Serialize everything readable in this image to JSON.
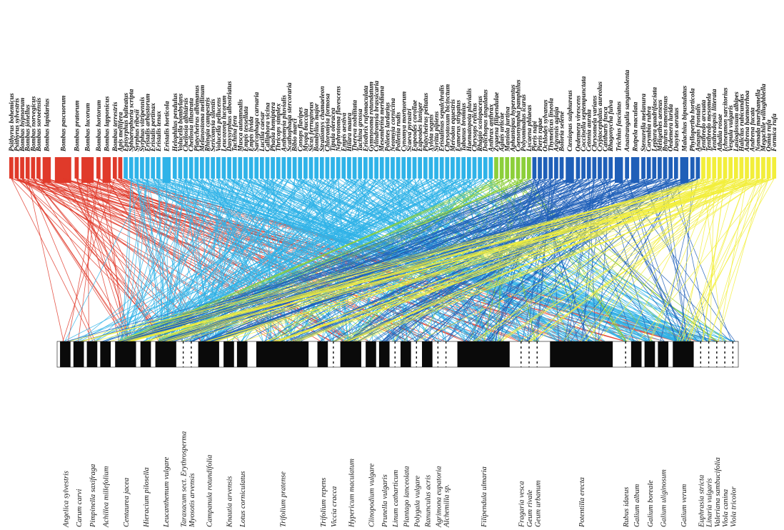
{
  "colors": {
    "red": "#e03a2a",
    "lightblue": "#2fb3e8",
    "green": "#8ccf3a",
    "darkblue": "#1f5fb8",
    "yellow": "#f2ee3a",
    "bar": "#0a0a0a"
  },
  "insects": [
    {
      "name": "Psithyrus bohemicus",
      "group": "red",
      "w": 1
    },
    {
      "name": "Psithyrus sylvestris",
      "group": "red",
      "w": 1
    },
    {
      "name": "Bombus hypnorum",
      "group": "red",
      "w": 1
    },
    {
      "name": "Bombus jonellus",
      "group": "red",
      "w": 1
    },
    {
      "name": "Bombus norvegicus",
      "group": "red",
      "w": 1
    },
    {
      "name": "Bombus soroeensis",
      "group": "red",
      "w": 1
    },
    {
      "name": "Bombus lapidarius",
      "group": "red",
      "w": 2
    },
    {
      "name": "Bombus pascuorum",
      "group": "red",
      "w": 4
    },
    {
      "name": "Bombus pratorum",
      "group": "red",
      "w": 1
    },
    {
      "name": "Bombus lucorum",
      "group": "red",
      "w": 3
    },
    {
      "name": "Bombus hortorum",
      "group": "red",
      "w": 1
    },
    {
      "name": "Bombus lapponicus",
      "group": "red",
      "w": 2
    },
    {
      "name": "Bombus terrestris",
      "group": "red",
      "w": 1
    },
    {
      "name": "Apis mellifera",
      "group": "red",
      "w": 1
    },
    {
      "name": "Episyrphus balteatus",
      "group": "lightblue",
      "w": 1
    },
    {
      "name": "Sphaerophoria scripta",
      "group": "lightblue",
      "w": 1
    },
    {
      "name": "Syrphus ribesii",
      "group": "lightblue",
      "w": 1
    },
    {
      "name": "Syrphus vitripennis",
      "group": "lightblue",
      "w": 1
    },
    {
      "name": "Eristalis arbustorum",
      "group": "lightblue",
      "w": 1
    },
    {
      "name": "Eristalis pertinax",
      "group": "lightblue",
      "w": 1
    },
    {
      "name": "Eristalis tenax",
      "group": "lightblue",
      "w": 1
    },
    {
      "name": "Eristalis horticola",
      "group": "lightblue",
      "w": 2
    },
    {
      "name": "Helophilus pendulus",
      "group": "lightblue",
      "w": 1
    },
    {
      "name": "Volucella bombylans",
      "group": "lightblue",
      "w": 1
    },
    {
      "name": "Cheilosia albitarsis",
      "group": "lightblue",
      "w": 1
    },
    {
      "name": "Cheilosia illustrata",
      "group": "lightblue",
      "w": 1
    },
    {
      "name": "Platycheirus albimanus",
      "group": "lightblue",
      "w": 1
    },
    {
      "name": "Melanostoma mellinum",
      "group": "lightblue",
      "w": 1
    },
    {
      "name": "Rhingia campestris",
      "group": "lightblue",
      "w": 1
    },
    {
      "name": "Sericomyia silentis",
      "group": "lightblue",
      "w": 1
    },
    {
      "name": "Volucella pellucens",
      "group": "lightblue",
      "w": 1
    },
    {
      "name": "Leucozona lucorum",
      "group": "lightblue",
      "w": 1
    },
    {
      "name": "Dasysyrphus albostriatus",
      "group": "lightblue",
      "w": 1
    },
    {
      "name": "Tachina fera",
      "group": "lightblue",
      "w": 1
    },
    {
      "name": "Musca autumnalis",
      "group": "lightblue",
      "w": 1
    },
    {
      "name": "Empis tessellata",
      "group": "lightblue",
      "w": 1
    },
    {
      "name": "Empis livida",
      "group": "lightblue",
      "w": 1
    },
    {
      "name": "Sarcophaga carnaria",
      "group": "lightblue",
      "w": 1
    },
    {
      "name": "Lucilia caesar",
      "group": "lightblue",
      "w": 1
    },
    {
      "name": "Calliphora vicina",
      "group": "lightblue",
      "w": 1
    },
    {
      "name": "Phasia hemiptera",
      "group": "lightblue",
      "w": 1
    },
    {
      "name": "Thricops simplex",
      "group": "lightblue",
      "w": 1
    },
    {
      "name": "Anthomyia pluvialis",
      "group": "lightblue",
      "w": 1
    },
    {
      "name": "Scathophaga stercoraria",
      "group": "lightblue",
      "w": 1
    },
    {
      "name": "Bibio marci",
      "group": "lightblue",
      "w": 1
    },
    {
      "name": "Conops flavipes",
      "group": "lightblue",
      "w": 1
    },
    {
      "name": "Myopa buccata",
      "group": "lightblue",
      "w": 1
    },
    {
      "name": "Sicus ferrugineus",
      "group": "lightblue",
      "w": 1
    },
    {
      "name": "Bombylius major",
      "group": "lightblue",
      "w": 1
    },
    {
      "name": "Stratiomys chamaeleon",
      "group": "lightblue",
      "w": 1
    },
    {
      "name": "Chloromyia formosa",
      "group": "lightblue",
      "w": 1
    },
    {
      "name": "Tipula oleracea",
      "group": "lightblue",
      "w": 1
    },
    {
      "name": "Nephrotoma flavescens",
      "group": "lightblue",
      "w": 1
    },
    {
      "name": "Empis aestiva",
      "group": "lightblue",
      "w": 1
    },
    {
      "name": "Hilara maura",
      "group": "lightblue",
      "w": 1
    },
    {
      "name": "Thereva nobilitata",
      "group": "lightblue",
      "w": 1
    },
    {
      "name": "Tachina grossa",
      "group": "lightblue",
      "w": 1
    },
    {
      "name": "Eriothrix rufomaculata",
      "group": "lightblue",
      "w": 1
    },
    {
      "name": "Gymnosoma rotundatum",
      "group": "lightblue",
      "w": 1
    },
    {
      "name": "Cylindromyia brassicaria",
      "group": "lightblue",
      "w": 1
    },
    {
      "name": "Mesembrina meridiana",
      "group": "lightblue",
      "w": 1
    },
    {
      "name": "Polietes lardarius",
      "group": "lightblue",
      "w": 1
    },
    {
      "name": "Neomyia cornicina",
      "group": "lightblue",
      "w": 1
    },
    {
      "name": "Pollenia rudis",
      "group": "lightblue",
      "w": 1
    },
    {
      "name": "Cynomya mortuorum",
      "group": "lightblue",
      "w": 1
    },
    {
      "name": "Scaeva pyrastri",
      "group": "lightblue",
      "w": 1
    },
    {
      "name": "Eupeodes corollae",
      "group": "lightblue",
      "w": 1
    },
    {
      "name": "Eupeodes luniger",
      "group": "lightblue",
      "w": 1
    },
    {
      "name": "Platycheirus peltatus",
      "group": "lightblue",
      "w": 1
    },
    {
      "name": "Xylota segnis",
      "group": "lightblue",
      "w": 1
    },
    {
      "name": "Syritta pipiens",
      "group": "lightblue",
      "w": 1
    },
    {
      "name": "Eristalinus sepulchralis",
      "group": "lightblue",
      "w": 1
    },
    {
      "name": "Chrysotoxum bicinctum",
      "group": "lightblue",
      "w": 1
    },
    {
      "name": "Merodon equestris",
      "group": "lightblue",
      "w": 1
    },
    {
      "name": "Eumerus strigatus",
      "group": "lightblue",
      "w": 1
    },
    {
      "name": "Tabanus bromius",
      "group": "lightblue",
      "w": 1
    },
    {
      "name": "Haematopota pluvialis",
      "group": "lightblue",
      "w": 1
    },
    {
      "name": "Chrysops relictus",
      "group": "lightblue",
      "w": 1
    },
    {
      "name": "Rhagio scolopaceus",
      "group": "lightblue",
      "w": 1
    },
    {
      "name": "Dolichopus ungulatus",
      "group": "lightblue",
      "w": 1
    },
    {
      "name": "Anthrax anthrax",
      "group": "lightblue",
      "w": 1
    },
    {
      "name": "Zygaena filipendulae",
      "group": "green",
      "w": 1
    },
    {
      "name": "Aglais urticae",
      "group": "green",
      "w": 1
    },
    {
      "name": "Maniola jurtina",
      "group": "green",
      "w": 1
    },
    {
      "name": "Aphantopus hyperantus",
      "group": "green",
      "w": 1
    },
    {
      "name": "Coenonympha pamphilus",
      "group": "green",
      "w": 1
    },
    {
      "name": "Polyommatus icarus",
      "group": "green",
      "w": 1
    },
    {
      "name": "Lycaena phlaeas",
      "group": "green",
      "w": 1
    },
    {
      "name": "Pieris napi",
      "group": "darkblue",
      "w": 1
    },
    {
      "name": "Pieris rapae",
      "group": "darkblue",
      "w": 1
    },
    {
      "name": "Ochlodes sylvanus",
      "group": "darkblue",
      "w": 1
    },
    {
      "name": "Thymelicus lineola",
      "group": "darkblue",
      "w": 1
    },
    {
      "name": "Argynnis aglaja",
      "group": "darkblue",
      "w": 1
    },
    {
      "name": "Boloria selene",
      "group": "darkblue",
      "w": 1
    },
    {
      "name": "Cteniopus sulphureus",
      "group": "darkblue",
      "w": 2
    },
    {
      "name": "Oedemera virescens",
      "group": "darkblue",
      "w": 1
    },
    {
      "name": "Coccinella septempunctata",
      "group": "darkblue",
      "w": 1
    },
    {
      "name": "Cetonia aurata",
      "group": "darkblue",
      "w": 1
    },
    {
      "name": "Chrysomela varians",
      "group": "darkblue",
      "w": 1
    },
    {
      "name": "Cryptocephalus aureolus",
      "group": "darkblue",
      "w": 1
    },
    {
      "name": "Cantharis fusca",
      "group": "darkblue",
      "w": 1
    },
    {
      "name": "Rhagonycha fulva",
      "group": "darkblue",
      "w": 1
    },
    {
      "name": "Trichius fasciatus",
      "group": "darkblue",
      "w": 2
    },
    {
      "name": "Anastrangalia sanguinolenta",
      "group": "darkblue",
      "w": 1
    },
    {
      "name": "Rutpela maculata",
      "group": "darkblue",
      "w": 2
    },
    {
      "name": "Stenurella melanura",
      "group": "darkblue",
      "w": 1
    },
    {
      "name": "Corymbia rubra",
      "group": "darkblue",
      "w": 1
    },
    {
      "name": "Leptura quadrifasciata",
      "group": "darkblue",
      "w": 1
    },
    {
      "name": "Meligethes aeneus",
      "group": "darkblue",
      "w": 1
    },
    {
      "name": "Byturus tomentosus",
      "group": "darkblue",
      "w": 1
    },
    {
      "name": "Oedemera lurida",
      "group": "darkblue",
      "w": 1
    },
    {
      "name": "Dasytes aeratus",
      "group": "darkblue",
      "w": 1
    },
    {
      "name": "Malachius bipustulatus",
      "group": "darkblue",
      "w": 2
    },
    {
      "name": "Phyllopertha horticola",
      "group": "darkblue",
      "w": 1
    },
    {
      "name": "Anaspis frontalis",
      "group": "darkblue",
      "w": 1
    },
    {
      "name": "Tenthredo arcuata",
      "group": "yellow",
      "w": 1
    },
    {
      "name": "Tenthredo mesomela",
      "group": "yellow",
      "w": 1
    },
    {
      "name": "Tenthredopsis litterata",
      "group": "yellow",
      "w": 1
    },
    {
      "name": "Athalia rosae",
      "group": "yellow",
      "w": 1
    },
    {
      "name": "Ichneumon sarcitorius",
      "group": "yellow",
      "w": 1
    },
    {
      "name": "Vespula vulgaris",
      "group": "yellow",
      "w": 1
    },
    {
      "name": "Lasioglossum albipes",
      "group": "yellow",
      "w": 1
    },
    {
      "name": "Halictus rubicundus",
      "group": "yellow",
      "w": 1
    },
    {
      "name": "Andrena haemorrhoa",
      "group": "yellow",
      "w": 1
    },
    {
      "name": "Andrena fucata",
      "group": "yellow",
      "w": 1
    },
    {
      "name": "Nomada marshamella",
      "group": "yellow",
      "w": 1
    },
    {
      "name": "Megachile willughbiella",
      "group": "yellow",
      "w": 1
    },
    {
      "name": "Osmia rufa",
      "group": "yellow",
      "w": 1
    },
    {
      "name": "Formica rufa",
      "group": "yellow",
      "w": 1
    }
  ],
  "plants": [
    {
      "name": "Angelica sylvestris",
      "w": 1
    },
    {
      "name": "Carum carvi",
      "w": 1
    },
    {
      "name": "Pimpinella saxifraga",
      "w": 1
    },
    {
      "name": "Achillea millefolium",
      "w": 1
    },
    {
      "name": "Centaurea jacea",
      "w": 2
    },
    {
      "name": "Hieracium pilosella",
      "w": 1
    },
    {
      "name": "Leucanthemum vulgare",
      "w": 2
    },
    {
      "name": "Taraxacum sect. Erythrosperma",
      "w": 0
    },
    {
      "name": "Myosotis arvensis",
      "w": 0
    },
    {
      "name": "Campanula rotundifolia",
      "w": 2
    },
    {
      "name": "Knautia arvensis",
      "w": 1
    },
    {
      "name": "Lotus corniculatus",
      "w": 1
    },
    {
      "name": "Trifolium pratense",
      "w": 5
    },
    {
      "name": "Trifolium repens",
      "w": 1
    },
    {
      "name": "Viccia cracca",
      "w": 0
    },
    {
      "name": "Hypericum maculatum",
      "w": 2
    },
    {
      "name": "Clinopodium vulgare",
      "w": 1
    },
    {
      "name": "Prunella vulgaris",
      "w": 1
    },
    {
      "name": "Linum catharticum",
      "w": 0
    },
    {
      "name": "Plantago lanceolata",
      "w": 1
    },
    {
      "name": "Polygala vulgare",
      "w": 0
    },
    {
      "name": "Ranunculus acris",
      "w": 1
    },
    {
      "name": "Agrimona eupatoria",
      "w": 0
    },
    {
      "name": "Alchemilla sp.",
      "w": 0
    },
    {
      "name": "Filipendula ulmaria",
      "w": 5
    },
    {
      "name": "Fragaria vesca",
      "w": 0
    },
    {
      "name": "Geum rivale",
      "w": 0
    },
    {
      "name": "Geum urbanum",
      "w": 0
    },
    {
      "name": "Potentilla erecta",
      "w": 6
    },
    {
      "name": "Rubus idaeus",
      "w": 0
    },
    {
      "name": "Galium album",
      "w": 1
    },
    {
      "name": "Galium boreale",
      "w": 1
    },
    {
      "name": "Galium uliginosum",
      "w": 1
    },
    {
      "name": "Galium verum",
      "w": 2
    },
    {
      "name": "Euphrasia stricta",
      "w": 0
    },
    {
      "name": "Linaria vulgaris",
      "w": 0
    },
    {
      "name": "Valeriana sambucifolia",
      "w": 0
    },
    {
      "name": "Viola canina",
      "w": 0
    },
    {
      "name": "Viola tricolor",
      "w": 0
    }
  ]
}
